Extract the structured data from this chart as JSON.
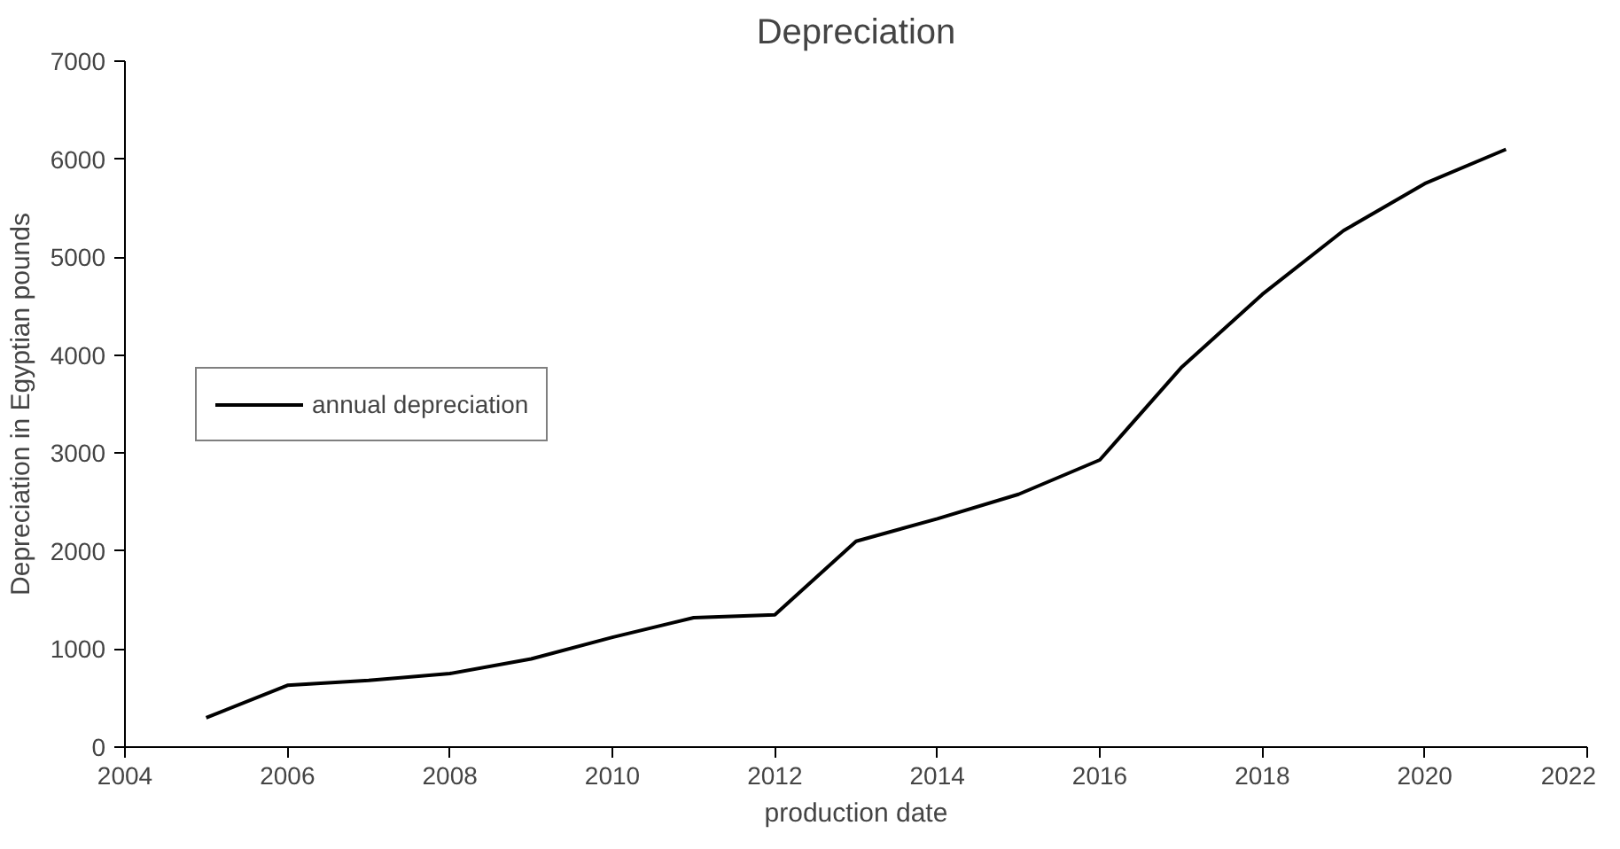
{
  "chart_data": {
    "type": "line",
    "title": "Depreciation",
    "xlabel": "production date",
    "ylabel": "Depreciation in Egyptian pounds",
    "x": [
      2005,
      2006,
      2007,
      2008,
      2009,
      2010,
      2011,
      2012,
      2013,
      2014,
      2015,
      2016,
      2017,
      2018,
      2019,
      2020,
      2021
    ],
    "series": [
      {
        "name": "annual depreciation",
        "color": "#000000",
        "values": [
          300,
          630,
          680,
          750,
          900,
          1120,
          1320,
          1350,
          2100,
          2330,
          2580,
          2930,
          3870,
          4620,
          5270,
          5750,
          6100
        ]
      }
    ],
    "xlim": [
      2004,
      2022
    ],
    "xticks": [
      2004,
      2006,
      2008,
      2010,
      2012,
      2014,
      2016,
      2018,
      2020,
      2022
    ],
    "ylim": [
      0,
      7000
    ],
    "yticks": [
      0,
      1000,
      2000,
      3000,
      4000,
      5000,
      6000,
      7000
    ],
    "grid": false,
    "legend": "left",
    "marker": "none",
    "line_style": "solid"
  }
}
